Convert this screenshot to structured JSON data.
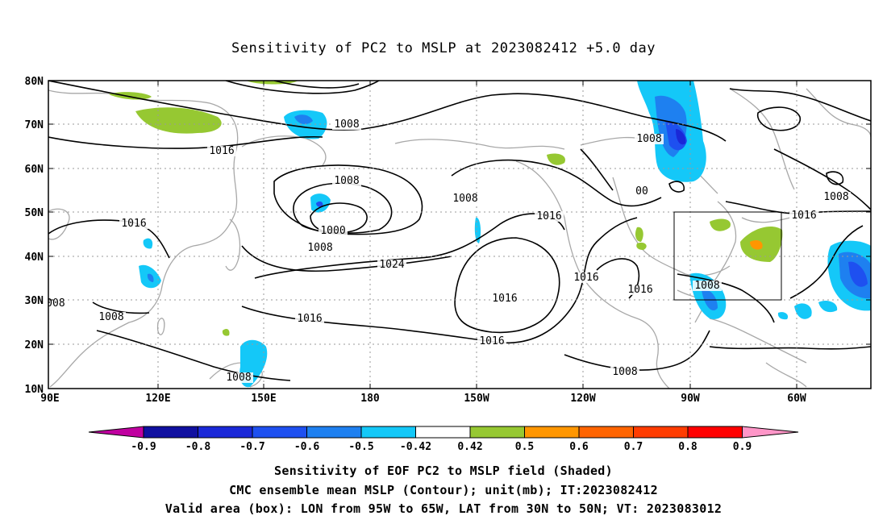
{
  "title": "Sensitivity of PC2 to MSLP at 2023082412 +5.0 day",
  "axes": {
    "lat_labels": [
      "80N",
      "70N",
      "60N",
      "50N",
      "40N",
      "30N",
      "20N",
      "10N"
    ],
    "lon_labels": [
      "90E",
      "120E",
      "150E",
      "180",
      "150W",
      "120W",
      "90W",
      "60W"
    ]
  },
  "contour_labels": [
    "1008",
    "1016",
    "1008",
    "1008",
    "1000",
    "1008",
    "1008",
    "1016",
    "1024",
    "1016",
    "1016",
    "1016",
    "1008",
    "1008",
    "1016",
    "1016",
    "1008",
    "1016",
    "1008",
    "1008",
    "1016",
    "1008",
    "00"
  ],
  "colorbar": {
    "tick_labels": [
      "-0.9",
      "-0.8",
      "-0.7",
      "-0.6",
      "-0.5",
      "-0.42",
      "0.42",
      "0.5",
      "0.6",
      "0.7",
      "0.8",
      "0.9"
    ],
    "colors": [
      "#c000a0",
      "#1010a0",
      "#1a28d8",
      "#1e50f0",
      "#1e80f0",
      "#14c8f8",
      "#ffffff",
      "#96c832",
      "#ff9600",
      "#ff6400",
      "#ff3c00",
      "#ff0000",
      "#ff96c8"
    ]
  },
  "captions": {
    "line1": "Sensitivity of EOF PC2 to MSLP field (Shaded)",
    "line2": "CMC ensemble mean MSLP (Contour); unit(mb); IT:2023082412",
    "line3": "Valid area (box): LON from 95W to 65W, LAT from 30N to 50N; VT: 2023083012"
  }
}
